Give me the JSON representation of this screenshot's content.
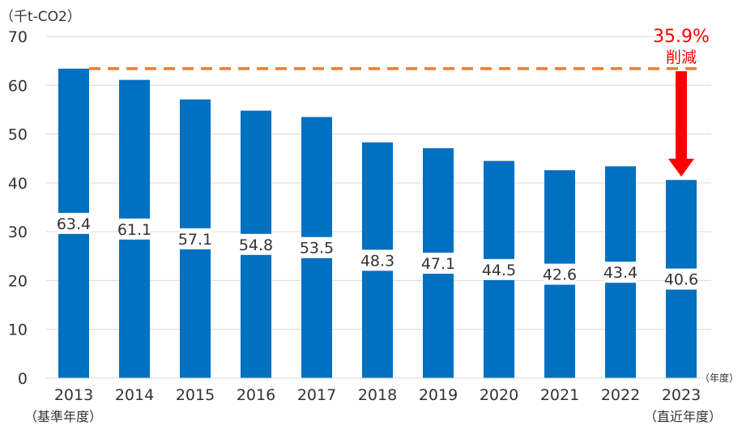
{
  "chart_data": {
    "type": "bar",
    "categories": [
      "2013",
      "2014",
      "2015",
      "2016",
      "2017",
      "2018",
      "2019",
      "2020",
      "2021",
      "2022",
      "2023"
    ],
    "values": [
      63.4,
      61.1,
      57.1,
      54.8,
      53.5,
      48.3,
      47.1,
      44.5,
      42.6,
      43.4,
      40.6
    ],
    "ylim": [
      0,
      70
    ],
    "yticks": [
      0,
      10,
      20,
      30,
      40,
      50,
      60,
      70
    ],
    "unit_label": "（千t-CO2）",
    "xunit_label": "（年度）",
    "category_sublabels": {
      "first": "（基準年度）",
      "last": "（直近年度）"
    },
    "grid": true,
    "reference_line": {
      "value": 63.4,
      "color": "#ed7d31",
      "style": "dashed"
    },
    "annotation": {
      "percent": "35.9%",
      "text": "削減",
      "color": "#ff0000"
    },
    "bar_color": "#0070c0",
    "grid_color": "#d9d9d9"
  }
}
